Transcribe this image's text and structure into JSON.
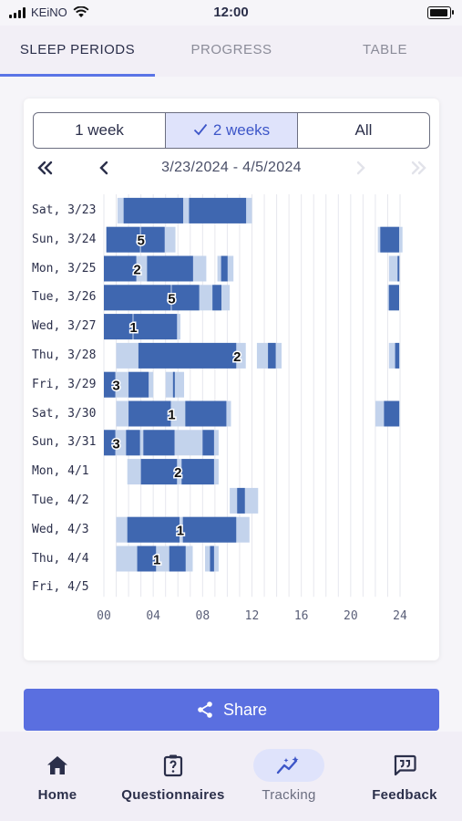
{
  "status_bar": {
    "carrier": "KEiNO",
    "time": "12:00",
    "icons": [
      "signal-icon",
      "wifi-icon",
      "battery-icon"
    ]
  },
  "tabs": [
    {
      "label": "SLEEP PERIODS",
      "active": true
    },
    {
      "label": "PROGRESS",
      "active": false
    },
    {
      "label": "TABLE",
      "active": false
    }
  ],
  "range_selector": {
    "options": [
      {
        "label": "1 week",
        "selected": false
      },
      {
        "label": "2 weeks",
        "selected": true,
        "icon": "check-icon"
      },
      {
        "label": "All",
        "selected": false
      }
    ]
  },
  "date_nav": {
    "range": "3/23/2024 - 4/5/2024",
    "buttons": [
      "first-page-icon",
      "previous-icon",
      "next-icon",
      "last-page-icon"
    ]
  },
  "chart_data": {
    "type": "timeline",
    "x_axis": {
      "min": 0,
      "max": 24,
      "ticks": [
        "00",
        "04",
        "08",
        "12",
        "16",
        "20",
        "24"
      ]
    },
    "colors": {
      "sleep": "#3f67b0",
      "light": "#c3d3ec",
      "grid": "#e6e7ee"
    },
    "days": [
      {
        "label": "Sat, 3/23",
        "count": "",
        "light": [
          [
            1.1,
            12.0
          ]
        ],
        "sleep": [
          [
            1.6,
            6.5
          ],
          [
            6.9,
            11.6
          ]
        ]
      },
      {
        "label": "Sun, 3/24",
        "count": "5",
        "light": [
          [
            0.2,
            5.8
          ],
          [
            22.2,
            24.2
          ]
        ],
        "sleep": [
          [
            0.2,
            3.0
          ],
          [
            3.0,
            5.0
          ],
          [
            22.4,
            24.0
          ]
        ]
      },
      {
        "label": "Mon, 3/25",
        "count": "2",
        "light": [
          [
            0.0,
            8.3
          ],
          [
            9.2,
            10.5
          ],
          [
            23.1,
            23.9
          ]
        ],
        "sleep": [
          [
            0.0,
            2.7
          ],
          [
            3.5,
            7.3
          ],
          [
            9.5,
            10.1
          ],
          [
            23.8,
            24.0
          ]
        ]
      },
      {
        "label": "Tue, 3/26",
        "count": "5",
        "light": [
          [
            0.0,
            10.2
          ],
          [
            23.0,
            23.9
          ]
        ],
        "sleep": [
          [
            0.0,
            5.5
          ],
          [
            5.5,
            7.8
          ],
          [
            8.8,
            9.6
          ],
          [
            23.1,
            24.0
          ]
        ]
      },
      {
        "label": "Wed, 3/27",
        "count": "1",
        "light": [
          [
            0.0,
            6.2
          ]
        ],
        "sleep": [
          [
            0.0,
            2.4
          ],
          [
            2.4,
            6.0
          ]
        ]
      },
      {
        "label": "Thu, 3/28",
        "count": "2",
        "light": [
          [
            1.0,
            11.5
          ],
          [
            12.4,
            14.4
          ],
          [
            23.1,
            24.0
          ]
        ],
        "sleep": [
          [
            2.8,
            10.8
          ],
          [
            13.3,
            14.0
          ],
          [
            23.6,
            24.0
          ]
        ]
      },
      {
        "label": "Fri, 3/29",
        "count": "3",
        "light": [
          [
            0.0,
            4.0
          ],
          [
            5.0,
            6.5
          ]
        ],
        "sleep": [
          [
            0.0,
            1.0
          ],
          [
            2.0,
            3.7
          ],
          [
            5.6,
            5.8
          ]
        ]
      },
      {
        "label": "Sat, 3/30",
        "count": "1",
        "light": [
          [
            1.0,
            10.3
          ],
          [
            22.0,
            24.0
          ]
        ],
        "sleep": [
          [
            2.0,
            5.5
          ],
          [
            6.6,
            10.0
          ],
          [
            22.7,
            24.0
          ]
        ]
      },
      {
        "label": "Sun, 3/31",
        "count": "3",
        "light": [
          [
            0.0,
            9.3
          ]
        ],
        "sleep": [
          [
            0.0,
            1.0
          ],
          [
            1.8,
            3.0
          ],
          [
            3.2,
            5.8
          ],
          [
            8.0,
            9.0
          ]
        ]
      },
      {
        "label": "Mon, 4/1",
        "count": "2",
        "light": [
          [
            1.9,
            9.3
          ]
        ],
        "sleep": [
          [
            3.0,
            6.0
          ],
          [
            6.3,
            9.0
          ]
        ]
      },
      {
        "label": "Tue, 4/2",
        "count": "",
        "light": [
          [
            10.2,
            12.5
          ]
        ],
        "sleep": [
          [
            10.8,
            11.5
          ]
        ]
      },
      {
        "label": "Wed, 4/3",
        "count": "1",
        "light": [
          [
            1.0,
            11.8
          ]
        ],
        "sleep": [
          [
            1.9,
            6.2
          ],
          [
            6.4,
            10.8
          ]
        ]
      },
      {
        "label": "Thu, 4/4",
        "count": "1",
        "light": [
          [
            1.0,
            7.2
          ],
          [
            8.2,
            9.3
          ]
        ],
        "sleep": [
          [
            2.7,
            4.3
          ],
          [
            5.3,
            6.7
          ],
          [
            8.6,
            9.0
          ]
        ]
      },
      {
        "label": "Fri, 4/5",
        "count": "",
        "light": [],
        "sleep": []
      }
    ]
  },
  "share_button": {
    "label": "Share",
    "icon": "share-icon"
  },
  "bottom_nav": [
    {
      "label": "Home",
      "icon": "home-icon",
      "active": false
    },
    {
      "label": "Questionnaires",
      "icon": "questionnaire-icon",
      "active": false
    },
    {
      "label": "Tracking",
      "icon": "tracking-icon",
      "active": true
    },
    {
      "label": "Feedback",
      "icon": "feedback-icon",
      "active": false
    }
  ]
}
